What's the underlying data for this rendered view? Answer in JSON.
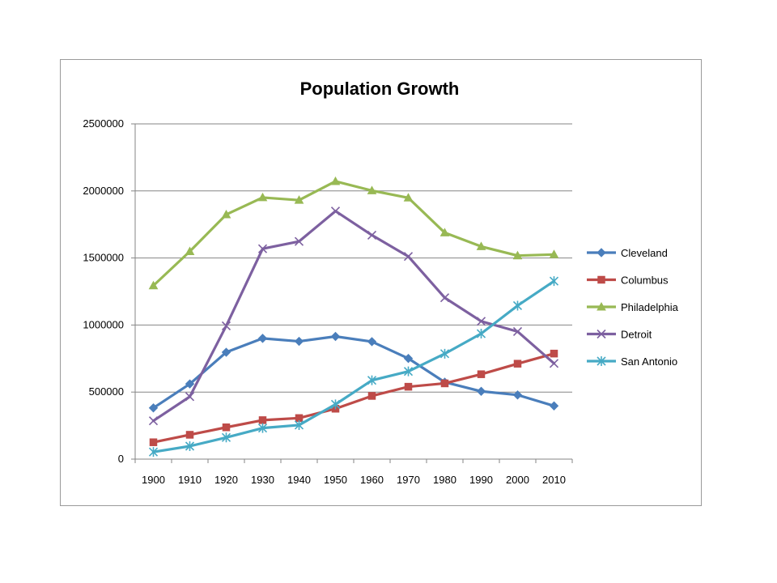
{
  "chart_data": {
    "type": "line",
    "title": "Population Growth",
    "xlabel": "",
    "ylabel": "",
    "categories": [
      "1900",
      "1910",
      "1920",
      "1930",
      "1940",
      "1950",
      "1960",
      "1970",
      "1980",
      "1990",
      "2000",
      "2010"
    ],
    "ylim": [
      0,
      2500000
    ],
    "yticks": [
      0,
      500000,
      1000000,
      1500000,
      2000000,
      2500000
    ],
    "grid": true,
    "legend_position": "right",
    "series": [
      {
        "name": "Cleveland",
        "color": "#4a7ebb",
        "marker": "diamond",
        "values": [
          381768,
          560663,
          796841,
          900429,
          878336,
          914808,
          876050,
          750903,
          573822,
          505616,
          478403,
          396815
        ]
      },
      {
        "name": "Columbus",
        "color": "#be4b48",
        "marker": "square",
        "values": [
          125560,
          181511,
          237031,
          290564,
          306087,
          375901,
          471316,
          539677,
          564871,
          632910,
          711470,
          787033
        ]
      },
      {
        "name": "Philadelphia",
        "color": "#98b954",
        "marker": "triangle",
        "values": [
          1293697,
          1549008,
          1823779,
          1950961,
          1931334,
          2071605,
          2002512,
          1948609,
          1688210,
          1585577,
          1517550,
          1526006
        ]
      },
      {
        "name": "Detroit",
        "color": "#7d60a0",
        "marker": "x",
        "values": [
          285704,
          465766,
          993678,
          1568662,
          1623452,
          1849568,
          1670144,
          1511482,
          1203339,
          1027974,
          951270,
          713777
        ]
      },
      {
        "name": "San Antonio",
        "color": "#46aac5",
        "marker": "star",
        "values": [
          53321,
          96614,
          161379,
          231542,
          253854,
          408442,
          587718,
          654153,
          785940,
          935933,
          1144646,
          1327407
        ]
      }
    ]
  }
}
